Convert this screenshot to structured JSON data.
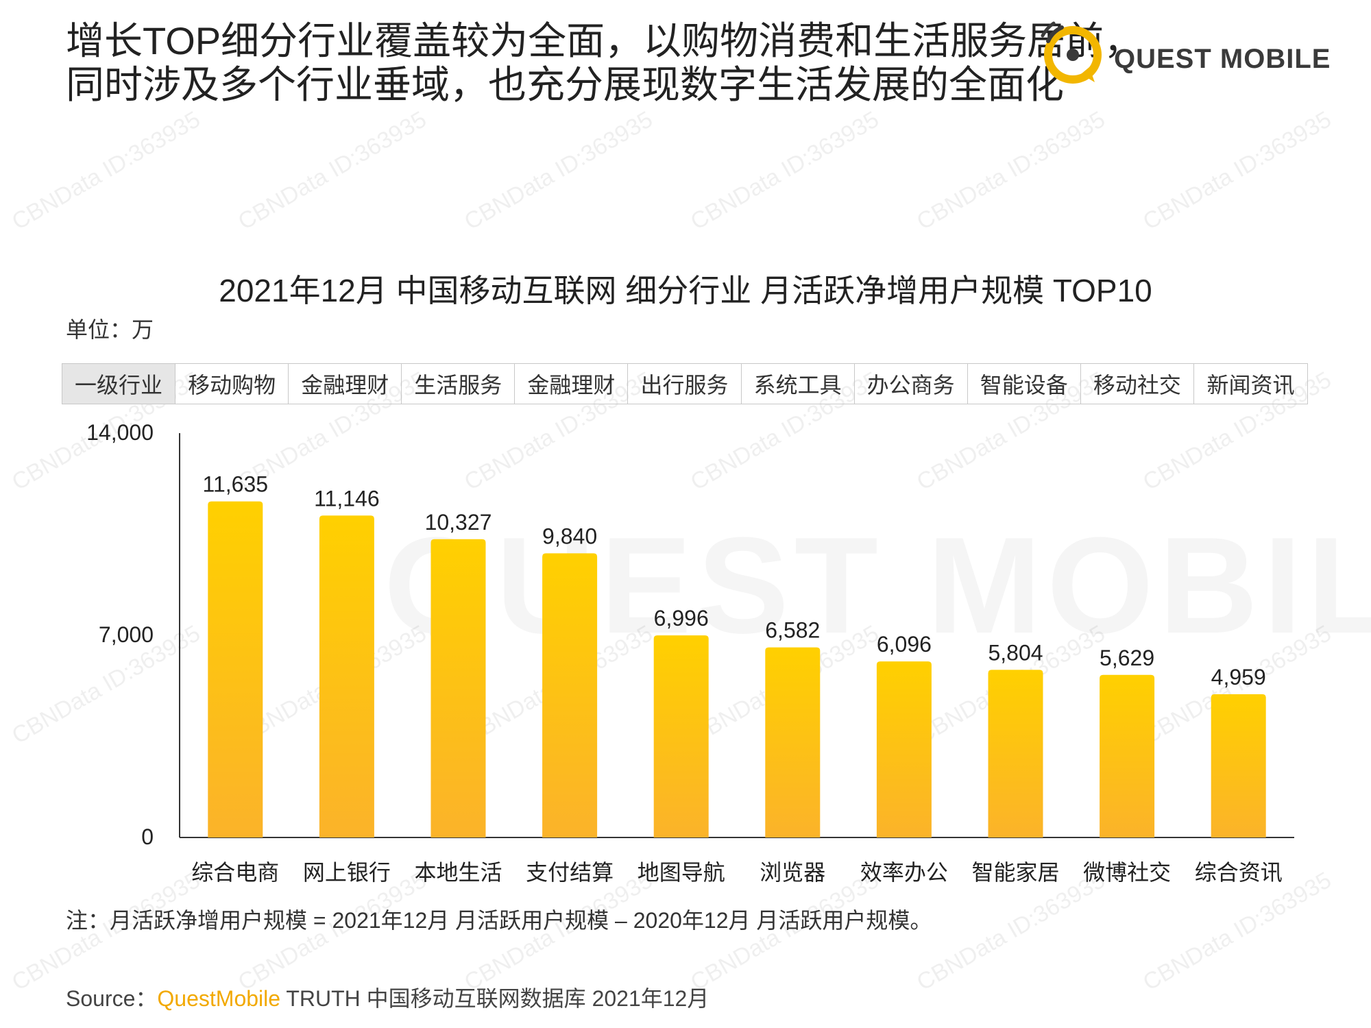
{
  "headline": {
    "line1": "增长TOP细分行业覆盖较为全面，以购物消费和生活服务居前，",
    "line2": "同时涉及多个行业垂域，也充分展现数字生活发展的全面化"
  },
  "logo": {
    "text": "QUEST MOBILE",
    "icon": "quest-mobile-logo-icon",
    "accent": "#f2b600"
  },
  "watermarks": {
    "text": "CBNData ID:363935",
    "logo_text": "QUEST MOBILE"
  },
  "unit": "单位：万",
  "category_table": {
    "header": "一级行业",
    "items": [
      "移动购物",
      "金融理财",
      "生活服务",
      "金融理财",
      "出行服务",
      "系统工具",
      "办公商务",
      "智能设备",
      "移动社交",
      "新闻资讯"
    ]
  },
  "chart_data": {
    "type": "bar",
    "title": "2021年12月 中国移动互联网 细分行业 月活跃净增用户规模 TOP10",
    "categories": [
      "综合电商",
      "网上银行",
      "本地生活",
      "支付结算",
      "地图导航",
      "浏览器",
      "效率办公",
      "智能家居",
      "微博社交",
      "综合资讯"
    ],
    "values": [
      11635,
      11146,
      10327,
      9840,
      6996,
      6582,
      6096,
      5804,
      5629,
      4959
    ],
    "value_labels": [
      "11,635",
      "11,146",
      "10,327",
      "9,840",
      "6,996",
      "6,582",
      "6,096",
      "5,804",
      "5,629",
      "4,959"
    ],
    "ylim": [
      0,
      14000
    ],
    "y_ticks": [
      0,
      7000,
      14000
    ],
    "y_tick_labels": [
      "0",
      "7,000",
      "14,000"
    ],
    "xlabel": "",
    "ylabel": "",
    "grid": false,
    "bar_color_top": "#ffd000",
    "bar_color_bottom": "#fbb32a"
  },
  "note": "注：月活跃净增用户规模 = 2021年12月 月活跃用户规模 – 2020年12月 月活跃用户规模。",
  "source": {
    "prefix": "Source：",
    "brand": "QuestMobile",
    "rest": " TRUTH 中国移动互联网数据库 2021年12月"
  }
}
